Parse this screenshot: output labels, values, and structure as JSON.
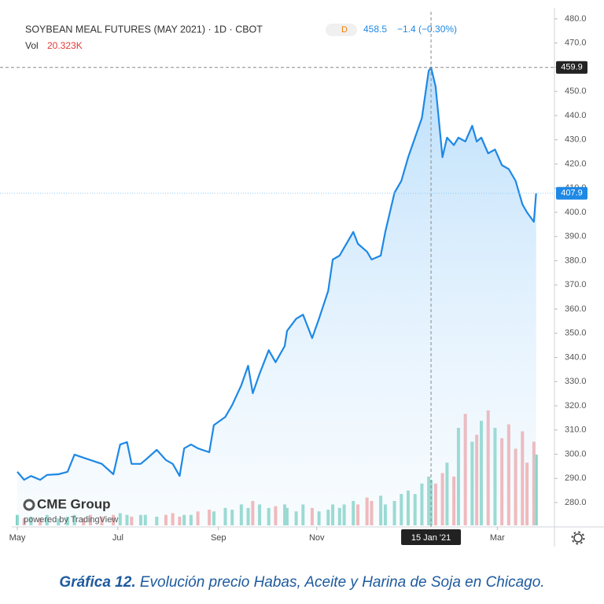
{
  "chart_data": {
    "type": "line",
    "title": "SOYBEAN MEAL FUTURES (MAY 2021) · 1D · CBOT",
    "badge": "D",
    "legend_price": "458.5",
    "legend_change": "−1.4 (−0.30%)",
    "vol_label": "Vol",
    "vol_value": "20.323K",
    "x": [
      0,
      3,
      6,
      10,
      13,
      18,
      22,
      25,
      29,
      32,
      37,
      42,
      45,
      48,
      50,
      54,
      56,
      61,
      65,
      68,
      71,
      73,
      76,
      79,
      84,
      86,
      91,
      94,
      98,
      101,
      103,
      106,
      110,
      113,
      117,
      118,
      122,
      125,
      129,
      132,
      136,
      138,
      141,
      143,
      147,
      149,
      153,
      155,
      159,
      161,
      165,
      168,
      171,
      174,
      177,
      180,
      181,
      183,
      186,
      188,
      191,
      193,
      196,
      199,
      201,
      203,
      206,
      209,
      212,
      215,
      218,
      221,
      223,
      226,
      227
    ],
    "series": [
      {
        "color": "#1e88e5",
        "values": [
          292.7,
          289.4,
          291,
          289.4,
          291.4,
          291.7,
          292.7,
          299.8,
          298.5,
          297.6,
          296,
          291.7,
          304,
          305,
          296,
          296,
          297.6,
          301.8,
          297.6,
          296,
          291,
          302.4,
          304,
          302.4,
          300.8,
          312,
          315.4,
          320.3,
          328.5,
          336.6,
          325.2,
          333.3,
          343,
          338,
          344.7,
          351,
          356,
          357.7,
          348,
          356,
          367.5,
          380.5,
          382.1,
          385.4,
          391.9,
          387,
          383.7,
          380.5,
          382.1,
          391.9,
          408.1,
          413,
          422.8,
          430.9,
          439,
          458.5,
          459.9,
          452,
          422.8,
          430.9,
          427.8,
          430.9,
          429.3,
          435.8,
          429.3,
          430.9,
          424.4,
          426,
          419.5,
          417.9,
          413,
          403.3,
          400,
          396.1,
          407.9
        ]
      },
      {
        "axis": "volume",
        "values": [
          3,
          2,
          2.5,
          2,
          3,
          2,
          2.5,
          3,
          2,
          3,
          2.5,
          3,
          3.5,
          3,
          2.5,
          3,
          3,
          2.5,
          3,
          3.5,
          2.5,
          3,
          3,
          4,
          4.5,
          4,
          5,
          4.5,
          6,
          5,
          7,
          6,
          5,
          5.5,
          6,
          5,
          4,
          6,
          5,
          4,
          4.5,
          6,
          5,
          6,
          7,
          6,
          8,
          7,
          8.5,
          6,
          7,
          9,
          10,
          9,
          12,
          14,
          13,
          12,
          15,
          18,
          14,
          28,
          32,
          24,
          26,
          30,
          33,
          28,
          25,
          29,
          22,
          27,
          18,
          24,
          20.323
        ]
      }
    ],
    "up_color": "#82d2c4",
    "down_color": "#f5a6a6",
    "xlim": [
      0,
      235
    ],
    "xticks": [
      {
        "value": 0,
        "label": "May"
      },
      {
        "value": 44,
        "label": "Jul"
      },
      {
        "value": 88,
        "label": "Sep"
      },
      {
        "value": 131,
        "label": "Nov"
      },
      {
        "value": 210,
        "label": "Mar"
      }
    ],
    "ylim": [
      280,
      480
    ],
    "yticks": [
      {
        "value": 280,
        "label": "280.0"
      },
      {
        "value": 290,
        "label": "290.0"
      },
      {
        "value": 300,
        "label": "300.0"
      },
      {
        "value": 310,
        "label": "310.0"
      },
      {
        "value": 320,
        "label": "320.0"
      },
      {
        "value": 330,
        "label": "330.0"
      },
      {
        "value": 340,
        "label": "340.0"
      },
      {
        "value": 350,
        "label": "350.0"
      },
      {
        "value": 360,
        "label": "360.0"
      },
      {
        "value": 370,
        "label": "370.0"
      },
      {
        "value": 380,
        "label": "380.0"
      },
      {
        "value": 390,
        "label": "390.0"
      },
      {
        "value": 400,
        "label": "400.0"
      },
      {
        "value": 410,
        "label": "410.0"
      },
      {
        "value": 420,
        "label": "420.0"
      },
      {
        "value": 430,
        "label": "430.0"
      },
      {
        "value": 440,
        "label": "440.0"
      },
      {
        "value": 450,
        "label": "450.0"
      },
      {
        "value": 460,
        "label": "460.0"
      },
      {
        "value": 470,
        "label": "470.0"
      },
      {
        "value": 480,
        "label": "480.0"
      }
    ],
    "grid": false,
    "crosshair": {
      "x": 181,
      "x_label": "15 Jan '21",
      "y": 459.9
    },
    "last_price": 407.9,
    "logo": "CME Group",
    "powered_by": "powered by TradingView"
  },
  "caption": {
    "label": "Gráfica 12.",
    "text": "Evolución precio Habas, Aceite y Harina de Soja en Chicago."
  }
}
